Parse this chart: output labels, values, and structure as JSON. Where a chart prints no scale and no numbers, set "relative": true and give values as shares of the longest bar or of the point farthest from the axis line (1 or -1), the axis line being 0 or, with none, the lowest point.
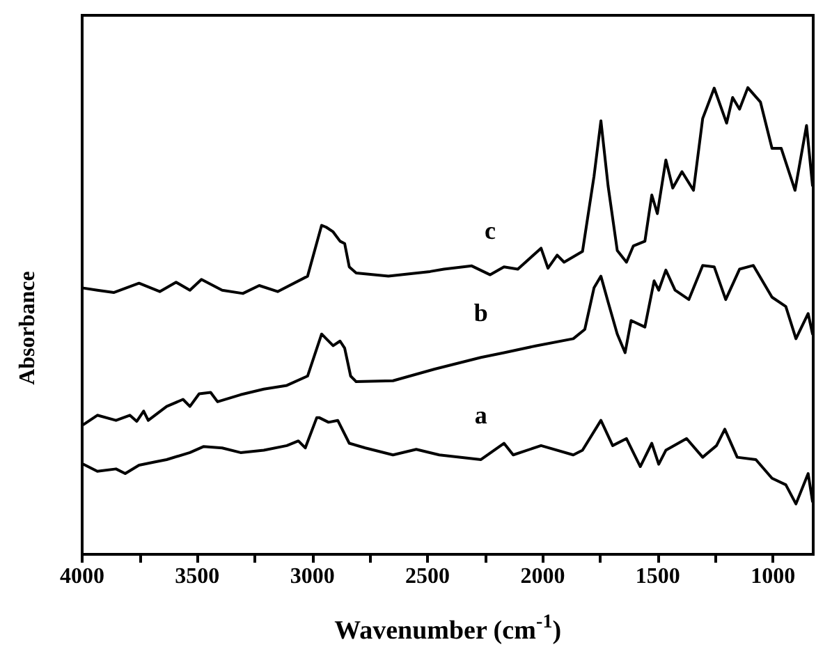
{
  "chart_data": {
    "type": "line",
    "relative": true,
    "xlabel": "Wavenumber (cm$^{-1}$)",
    "ylabel": "Absorbance",
    "xlim": [
      4000,
      825
    ],
    "xticks": [
      4000,
      {
        "value": 3750,
        "label": null
      },
      3500,
      {
        "value": 3250,
        "label": null
      },
      3000,
      {
        "value": 2750,
        "label": null
      },
      2500,
      {
        "value": 2250,
        "label": null
      },
      2000,
      {
        "value": 1750,
        "label": null
      },
      1500,
      {
        "value": 1250,
        "label": null
      },
      1000
    ],
    "grid": false,
    "marker": "none",
    "line_style": "solid",
    "series": [
      {
        "name": "a",
        "color": "#000000",
        "x": [
          3994,
          3934,
          3853,
          3813,
          3753,
          3683,
          3633,
          3532,
          3472,
          3392,
          3312,
          3211,
          3111,
          3061,
          3031,
          2981,
          2971,
          2930,
          2890,
          2840,
          2770,
          2650,
          2549,
          2449,
          2268,
          2168,
          2128,
          2007,
          1867,
          1827,
          1747,
          1696,
          1636,
          1576,
          1526,
          1496,
          1465,
          1375,
          1305,
          1245,
          1209,
          1155,
          1074,
          1004,
          944,
          900,
          847,
          828
        ],
        "values": [
          0.193,
          0.178,
          0.183,
          0.173,
          0.191,
          0.198,
          0.203,
          0.218,
          0.231,
          0.228,
          0.218,
          0.223,
          0.233,
          0.243,
          0.228,
          0.293,
          0.293,
          0.283,
          0.287,
          0.238,
          0.228,
          0.213,
          0.225,
          0.213,
          0.203,
          0.238,
          0.213,
          0.233,
          0.213,
          0.223,
          0.287,
          0.233,
          0.248,
          0.188,
          0.238,
          0.193,
          0.223,
          0.248,
          0.208,
          0.233,
          0.268,
          0.208,
          0.203,
          0.163,
          0.149,
          0.108,
          0.173,
          0.113
        ]
      },
      {
        "name": "b",
        "color": "#000000",
        "x": [
          3994,
          3934,
          3853,
          3793,
          3763,
          3733,
          3713,
          3633,
          3562,
          3532,
          3492,
          3442,
          3412,
          3312,
          3211,
          3111,
          3021,
          2960,
          2940,
          2910,
          2880,
          2860,
          2834,
          2810,
          2650,
          2469,
          2268,
          2168,
          2027,
          1867,
          1817,
          1777,
          1747,
          1716,
          1676,
          1642,
          1616,
          1556,
          1516,
          1496,
          1465,
          1425,
          1365,
          1305,
          1255,
          1205,
          1145,
          1085,
          1004,
          944,
          900,
          847,
          828
        ],
        "values": [
          0.278,
          0.298,
          0.287,
          0.298,
          0.285,
          0.307,
          0.287,
          0.317,
          0.332,
          0.317,
          0.344,
          0.347,
          0.327,
          0.342,
          0.354,
          0.362,
          0.382,
          0.472,
          0.462,
          0.447,
          0.457,
          0.442,
          0.382,
          0.37,
          0.372,
          0.397,
          0.422,
          0.432,
          0.447,
          0.462,
          0.482,
          0.571,
          0.596,
          0.541,
          0.472,
          0.432,
          0.501,
          0.487,
          0.586,
          0.566,
          0.609,
          0.566,
          0.546,
          0.619,
          0.616,
          0.546,
          0.611,
          0.619,
          0.551,
          0.531,
          0.462,
          0.516,
          0.472
        ]
      },
      {
        "name": "c",
        "color": "#000000",
        "x": [
          4000,
          3934,
          3863,
          3753,
          3663,
          3592,
          3532,
          3482,
          3392,
          3302,
          3231,
          3151,
          3021,
          2960,
          2940,
          2910,
          2880,
          2860,
          2840,
          2810,
          2670,
          2489,
          2429,
          2308,
          2228,
          2168,
          2108,
          2007,
          1977,
          1937,
          1907,
          1827,
          1777,
          1747,
          1716,
          1676,
          1636,
          1606,
          1556,
          1526,
          1502,
          1465,
          1435,
          1395,
          1345,
          1305,
          1255,
          1201,
          1175,
          1145,
          1109,
          1054,
          1004,
          964,
          904,
          854,
          828
        ],
        "values": [
          0.571,
          0.566,
          0.561,
          0.581,
          0.563,
          0.583,
          0.566,
          0.589,
          0.566,
          0.559,
          0.576,
          0.563,
          0.596,
          0.705,
          0.701,
          0.691,
          0.671,
          0.666,
          0.616,
          0.603,
          0.596,
          0.606,
          0.611,
          0.618,
          0.599,
          0.616,
          0.611,
          0.656,
          0.613,
          0.641,
          0.626,
          0.649,
          0.81,
          0.929,
          0.79,
          0.651,
          0.626,
          0.661,
          0.671,
          0.77,
          0.73,
          0.845,
          0.785,
          0.82,
          0.78,
          0.934,
          0.999,
          0.924,
          0.979,
          0.954,
          1.0,
          0.969,
          0.87,
          0.87,
          0.78,
          0.919,
          0.79
        ]
      }
    ]
  }
}
